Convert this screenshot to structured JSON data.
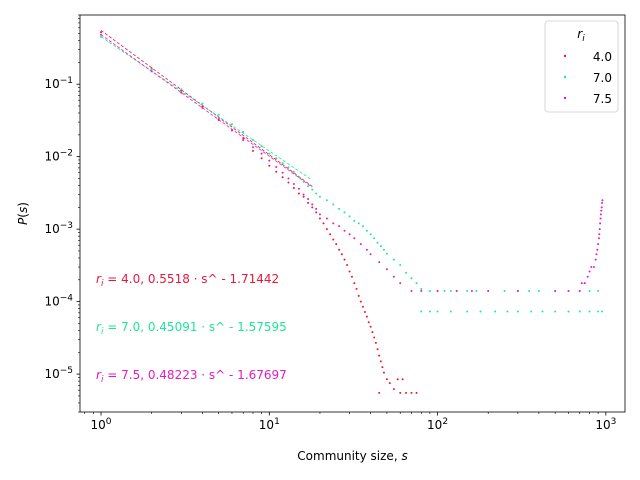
{
  "chart_data": {
    "type": "scatter",
    "title": "",
    "xlabel": "Community size, s",
    "ylabel": "P(s)",
    "xscale": "log",
    "yscale": "log",
    "xlim": [
      0.75,
      1300
    ],
    "ylim": [
      3e-06,
      0.9
    ],
    "grid": false,
    "legend": {
      "title": "r_i",
      "placement": "top-right"
    },
    "x_tick_labels": [
      "10^0",
      "10^1",
      "10^2",
      "10^3"
    ],
    "y_tick_labels": [
      "10^-5",
      "10^-4",
      "10^-3",
      "10^-2",
      "10^-1"
    ],
    "series": [
      {
        "name": "4.0",
        "color": "#e8173e",
        "fit": {
          "a": 0.5518,
          "b": 1.71442,
          "x_range": [
            1,
            18
          ],
          "label": "0.5518 · s^ - 1.71442"
        },
        "points": [
          [
            1,
            0.52
          ],
          [
            2,
            0.165
          ],
          [
            3,
            0.082
          ],
          [
            4,
            0.049
          ],
          [
            5,
            0.033
          ],
          [
            6,
            0.023
          ],
          [
            7,
            0.017
          ],
          [
            8,
            0.012
          ],
          [
            9,
            0.0095
          ],
          [
            10,
            0.0075
          ],
          [
            11,
            0.0062
          ],
          [
            12,
            0.0052
          ],
          [
            13,
            0.0044
          ],
          [
            14,
            0.0037
          ],
          [
            15,
            0.0031
          ],
          [
            16,
            0.0028
          ],
          [
            17,
            0.0023
          ],
          [
            18,
            0.002
          ],
          [
            19,
            0.0017
          ],
          [
            20,
            0.0014
          ],
          [
            21,
            0.0012
          ],
          [
            22,
            0.001
          ],
          [
            23,
            0.00085
          ],
          [
            24,
            0.00072
          ],
          [
            25,
            0.00062
          ],
          [
            26,
            0.00052
          ],
          [
            27,
            0.00045
          ],
          [
            28,
            0.00038
          ],
          [
            29,
            0.00032
          ],
          [
            30,
            0.00026
          ],
          [
            31,
            0.00022
          ],
          [
            32,
            0.00018
          ],
          [
            33,
            0.00015
          ],
          [
            34,
            0.00012
          ],
          [
            35,
            0.0001
          ],
          [
            36,
            8.5e-05
          ],
          [
            37,
            7.2e-05
          ],
          [
            38,
            6.2e-05
          ],
          [
            39,
            5.2e-05
          ],
          [
            40,
            4.5e-05
          ],
          [
            41,
            3.8e-05
          ],
          [
            42,
            3.2e-05
          ],
          [
            43,
            2.7e-05
          ],
          [
            44,
            2.2e-05
          ],
          [
            45,
            1.8e-05
          ],
          [
            46,
            1.5e-05
          ],
          [
            47,
            1.25e-05
          ],
          [
            48,
            1.05e-05
          ],
          [
            50,
            8.5e-06
          ],
          [
            52,
            7.5e-06
          ],
          [
            55,
            6.2e-06
          ],
          [
            45,
            5.5e-06
          ],
          [
            60,
            5.5e-06
          ],
          [
            65,
            5.5e-06
          ],
          [
            70,
            5.5e-06
          ],
          [
            75,
            5.5e-06
          ],
          [
            58,
            8.5e-06
          ],
          [
            62,
            8.5e-06
          ]
        ]
      },
      {
        "name": "7.0",
        "color": "#1de79a",
        "fit": {
          "a": 0.45091,
          "b": 1.57595,
          "x_range": [
            1,
            18
          ],
          "label": "0.45091 · s^ - 1.57595"
        },
        "points": [
          [
            1,
            0.45
          ],
          [
            2,
            0.16
          ],
          [
            3,
            0.085
          ],
          [
            4,
            0.054
          ],
          [
            5,
            0.038
          ],
          [
            6,
            0.028
          ],
          [
            7,
            0.022
          ],
          [
            8,
            0.017
          ],
          [
            9,
            0.014
          ],
          [
            10,
            0.011
          ],
          [
            11,
            0.0095
          ],
          [
            12,
            0.0081
          ],
          [
            13,
            0.0071
          ],
          [
            14,
            0.0062
          ],
          [
            15,
            0.0052
          ],
          [
            16,
            0.0045
          ],
          [
            17,
            0.0039
          ],
          [
            18,
            0.0035
          ],
          [
            19,
            0.0031
          ],
          [
            20,
            0.0028
          ],
          [
            22,
            0.0025
          ],
          [
            24,
            0.0022
          ],
          [
            26,
            0.0019
          ],
          [
            28,
            0.0017
          ],
          [
            30,
            0.0015
          ],
          [
            32,
            0.0013
          ],
          [
            34,
            0.0012
          ],
          [
            36,
            0.0011
          ],
          [
            38,
            0.00095
          ],
          [
            40,
            0.00085
          ],
          [
            42,
            0.00075
          ],
          [
            44,
            0.00065
          ],
          [
            46,
            0.00058
          ],
          [
            48,
            0.00052
          ],
          [
            50,
            0.00046
          ],
          [
            55,
            0.00038
          ],
          [
            60,
            0.00032
          ],
          [
            65,
            0.00025
          ],
          [
            70,
            0.00021
          ],
          [
            75,
            0.00018
          ],
          [
            80,
            0.00015
          ],
          [
            90,
            0.00014
          ],
          [
            100,
            0.00014
          ],
          [
            110,
            0.00014
          ],
          [
            120,
            0.00014
          ],
          [
            130,
            0.00014
          ],
          [
            150,
            0.00014
          ],
          [
            170,
            0.00014
          ],
          [
            200,
            0.00014
          ],
          [
            250,
            0.00014
          ],
          [
            300,
            0.00014
          ],
          [
            350,
            0.00014
          ],
          [
            400,
            0.00014
          ],
          [
            500,
            0.00014
          ],
          [
            600,
            0.00014
          ],
          [
            700,
            0.00014
          ],
          [
            800,
            0.00014
          ],
          [
            900,
            0.00014
          ],
          [
            80,
            7.3e-05
          ],
          [
            90,
            7.3e-05
          ],
          [
            100,
            7.3e-05
          ],
          [
            120,
            7.3e-05
          ],
          [
            150,
            7.3e-05
          ],
          [
            180,
            7.3e-05
          ],
          [
            220,
            7.3e-05
          ],
          [
            260,
            7.3e-05
          ],
          [
            300,
            7.3e-05
          ],
          [
            360,
            7.3e-05
          ],
          [
            420,
            7.3e-05
          ],
          [
            500,
            7.3e-05
          ],
          [
            600,
            7.3e-05
          ],
          [
            700,
            7.3e-05
          ],
          [
            800,
            7.3e-05
          ],
          [
            900,
            7.3e-05
          ],
          [
            950,
            7.3e-05
          ]
        ]
      },
      {
        "name": "7.5",
        "color": "#e61ac2",
        "fit": {
          "a": 0.48223,
          "b": 1.67697,
          "x_range": [
            1,
            18
          ],
          "label": "0.48223 · s^ - 1.67697"
        },
        "points": [
          [
            1,
            0.48
          ],
          [
            2,
            0.15
          ],
          [
            3,
            0.076
          ],
          [
            4,
            0.047
          ],
          [
            5,
            0.032
          ],
          [
            6,
            0.023
          ],
          [
            7,
            0.018
          ],
          [
            8,
            0.0135
          ],
          [
            9,
            0.011
          ],
          [
            10,
            0.0088
          ],
          [
            11,
            0.0072
          ],
          [
            12,
            0.006
          ],
          [
            13,
            0.005
          ],
          [
            14,
            0.0042
          ],
          [
            15,
            0.0036
          ],
          [
            16,
            0.003
          ],
          [
            17,
            0.0026
          ],
          [
            18,
            0.0022
          ],
          [
            19,
            0.0019
          ],
          [
            20,
            0.0016
          ],
          [
            22,
            0.0014
          ],
          [
            24,
            0.0012
          ],
          [
            26,
            0.0011
          ],
          [
            28,
            0.00095
          ],
          [
            30,
            0.00085
          ],
          [
            32,
            0.00075
          ],
          [
            35,
            0.00062
          ],
          [
            38,
            0.00052
          ],
          [
            40,
            0.00045
          ],
          [
            45,
            0.00035
          ],
          [
            50,
            0.00028
          ],
          [
            55,
            0.00022
          ],
          [
            60,
            0.00018
          ],
          [
            70,
            0.00014
          ],
          [
            80,
            0.00014
          ],
          [
            100,
            0.00014
          ],
          [
            130,
            0.00014
          ],
          [
            160,
            0.00014
          ],
          [
            200,
            0.00014
          ],
          [
            300,
            0.00014
          ],
          [
            500,
            0.00014
          ],
          [
            600,
            0.00014
          ],
          [
            700,
            0.00014
          ],
          [
            720,
            0.00018
          ],
          [
            750,
            0.00018
          ],
          [
            780,
            0.00022
          ],
          [
            800,
            0.00026
          ],
          [
            820,
            0.0003
          ],
          [
            850,
            0.0003
          ],
          [
            870,
            0.00038
          ],
          [
            880,
            0.00045
          ],
          [
            890,
            0.00052
          ],
          [
            900,
            0.00062
          ],
          [
            910,
            0.00075
          ],
          [
            915,
            0.00085
          ],
          [
            920,
            0.001
          ],
          [
            925,
            0.0012
          ],
          [
            930,
            0.0014
          ],
          [
            935,
            0.0016
          ],
          [
            940,
            0.0018
          ],
          [
            945,
            0.002
          ],
          [
            950,
            0.0023
          ],
          [
            955,
            0.0025
          ]
        ]
      }
    ]
  }
}
